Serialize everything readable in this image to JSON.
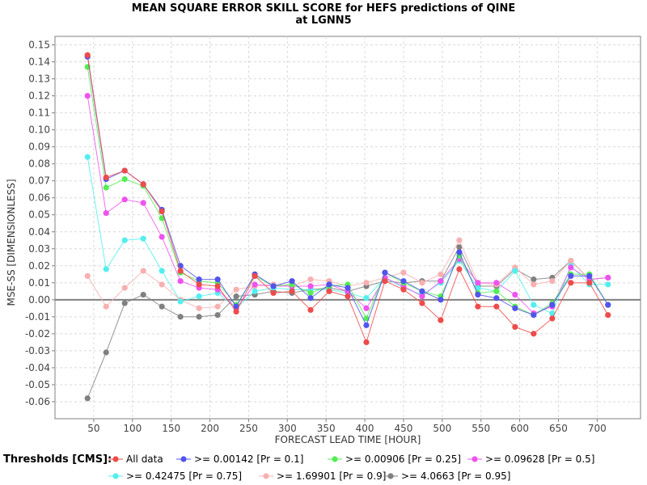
{
  "chart_data": {
    "type": "scatter",
    "title": "MEAN SQUARE ERROR SKILL SCORE for HEFS predictions of QINE",
    "subtitle": "at LGNN5",
    "xlabel": "FORECAST LEAD TIME [HOUR]",
    "ylabel": "MSE-SS [DIMENSIONLESS]",
    "xlim": [
      0,
      756
    ],
    "ylim": [
      -0.07,
      0.155
    ],
    "x_ticks": [
      50,
      100,
      150,
      200,
      250,
      300,
      350,
      400,
      450,
      500,
      550,
      600,
      650,
      700
    ],
    "y_ticks": [
      -0.06,
      -0.05,
      -0.04,
      -0.03,
      -0.02,
      -0.01,
      0.0,
      0.01,
      0.02,
      0.03,
      0.04,
      0.05,
      0.06,
      0.07,
      0.08,
      0.09,
      0.1,
      0.11,
      0.12,
      0.13,
      0.14,
      0.15
    ],
    "y_tick_labels": [
      "-0.06",
      "-0.05",
      "-0.04",
      "-0.03",
      "-0.02",
      "-0.01",
      "0.00",
      "0.01",
      "0.02",
      "0.03",
      "0.04",
      "0.05",
      "0.06",
      "0.07",
      "0.08",
      "0.09",
      "0.10",
      "0.11",
      "0.12",
      "0.13",
      "0.14",
      "0.15"
    ],
    "grid": true,
    "zero_line": true,
    "legend_title": "Thresholds [CMS]:",
    "legend_placement": "bottom",
    "x": [
      42,
      66,
      90,
      114,
      138,
      162,
      186,
      210,
      234,
      258,
      282,
      306,
      330,
      354,
      378,
      402,
      426,
      450,
      474,
      498,
      522,
      546,
      570,
      594,
      618,
      642,
      666,
      690,
      714
    ],
    "series": [
      {
        "name": "All data",
        "color": "#ee4b4b",
        "values": [
          0.144,
          0.072,
          0.076,
          0.068,
          0.052,
          0.017,
          0.009,
          0.008,
          -0.007,
          0.014,
          0.004,
          0.005,
          -0.006,
          0.005,
          0.002,
          -0.025,
          0.011,
          0.006,
          -0.002,
          -0.012,
          0.018,
          -0.004,
          -0.004,
          -0.016,
          -0.02,
          -0.011,
          0.01,
          0.01,
          -0.009
        ]
      },
      {
        "name": ">= 0.00142 [Pr = 0.1]",
        "color": "#5353ee",
        "values": [
          0.143,
          0.071,
          0.076,
          0.068,
          0.053,
          0.02,
          0.012,
          0.012,
          -0.004,
          0.015,
          0.008,
          0.011,
          0.001,
          0.009,
          0.007,
          -0.015,
          0.016,
          0.011,
          0.005,
          0.0,
          0.028,
          0.003,
          0.001,
          -0.005,
          -0.009,
          -0.003,
          0.014,
          0.014,
          -0.003
        ]
      },
      {
        "name": ">= 0.00906 [Pr = 0.25]",
        "color": "#53ee53",
        "values": [
          0.137,
          0.066,
          0.071,
          0.067,
          0.048,
          0.016,
          0.011,
          0.01,
          -0.003,
          0.014,
          0.008,
          0.009,
          0.004,
          0.008,
          0.009,
          -0.011,
          0.016,
          0.01,
          0.005,
          0.002,
          0.026,
          0.004,
          0.005,
          -0.004,
          -0.009,
          -0.002,
          0.015,
          0.015,
          -0.003
        ]
      },
      {
        "name": ">= 0.09628 [Pr = 0.5]",
        "color": "#ee53ee",
        "values": [
          0.12,
          0.051,
          0.059,
          0.057,
          0.037,
          0.011,
          0.007,
          0.006,
          -0.005,
          0.009,
          0.008,
          0.008,
          0.008,
          0.009,
          0.005,
          -0.005,
          0.013,
          0.008,
          0.002,
          0.011,
          0.024,
          0.01,
          0.01,
          0.003,
          -0.008,
          -0.004,
          0.019,
          0.012,
          0.013
        ]
      },
      {
        "name": ">= 0.42475 [Pr = 0.75]",
        "color": "#53eeee",
        "values": [
          0.084,
          0.018,
          0.035,
          0.036,
          0.017,
          -0.001,
          0.002,
          0.004,
          -0.005,
          0.005,
          0.007,
          0.006,
          0.006,
          0.006,
          0.004,
          0.001,
          0.013,
          0.007,
          0.003,
          0.01,
          0.023,
          0.007,
          0.005,
          0.017,
          -0.003,
          -0.008,
          0.02,
          0.009,
          0.009
        ]
      },
      {
        "name": ">= 1.69901 [Pr = 0.9]",
        "color": "#f8b0b0",
        "values": [
          0.014,
          -0.004,
          0.007,
          0.017,
          0.009,
          0.0,
          -0.005,
          -0.004,
          0.006,
          0.008,
          0.009,
          0.008,
          0.012,
          0.011,
          0.008,
          0.01,
          0.013,
          0.016,
          0.01,
          0.015,
          0.035,
          0.01,
          0.009,
          0.019,
          0.009,
          0.011,
          0.023,
          0.012,
          0.013
        ]
      },
      {
        "name": ">= 4.0663 [Pr = 0.95]",
        "color": "#808080",
        "values": [
          -0.058,
          -0.031,
          -0.002,
          0.003,
          -0.004,
          -0.01,
          -0.01,
          -0.009,
          0.002,
          0.003,
          0.005,
          0.004,
          0.006,
          0.007,
          0.005,
          0.008,
          0.011,
          0.01,
          0.011,
          0.011,
          0.031,
          0.008,
          0.008,
          0.018,
          0.012,
          0.013,
          0.023,
          0.012,
          0.013
        ]
      }
    ]
  }
}
